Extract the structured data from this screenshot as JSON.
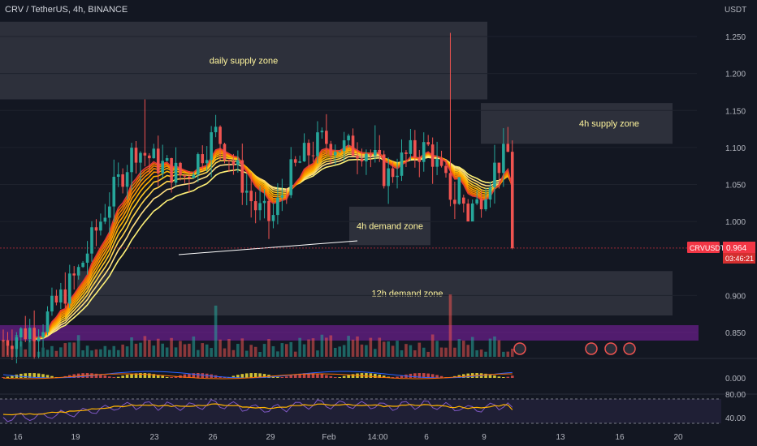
{
  "header": {
    "title": "CRV / TetherUS, 4h, BINANCE",
    "currency": "USDT"
  },
  "price_tag": {
    "symbol": "CRVUSDT",
    "price": "0.964",
    "countdown": "03:46:21",
    "color": "#f23645"
  },
  "chart_data": {
    "type": "candlestick",
    "title": "CRV / TetherUS, 4h, BINANCE",
    "ylabel": "USDT",
    "ylim": [
      0.82,
      1.29
    ],
    "y_ticks": [
      "1.250",
      "1.200",
      "1.150",
      "1.100",
      "1.050",
      "1.000",
      "0.900",
      "0.850"
    ],
    "x_ticks": [
      "16",
      "19",
      "23",
      "26",
      "29",
      "Feb",
      "14:00",
      "6",
      "9",
      "13",
      "16",
      "20"
    ],
    "up_color": "#26a69a",
    "down_color": "#ef5350",
    "zones": [
      {
        "label": "daily supply zone",
        "price_top": 1.27,
        "price_bottom": 1.165
      },
      {
        "label": "4h supply zone",
        "price_top": 1.16,
        "price_bottom": 1.105
      },
      {
        "label": "4h demand zone",
        "price_top": 1.02,
        "price_bottom": 0.968
      },
      {
        "label": "12h demand zone",
        "price_top": 0.933,
        "price_bottom": 0.873
      }
    ],
    "current_price": 0.964,
    "macd_ticks": [
      "0.000"
    ],
    "rsi_ticks": [
      "80.00",
      "40.00"
    ]
  }
}
